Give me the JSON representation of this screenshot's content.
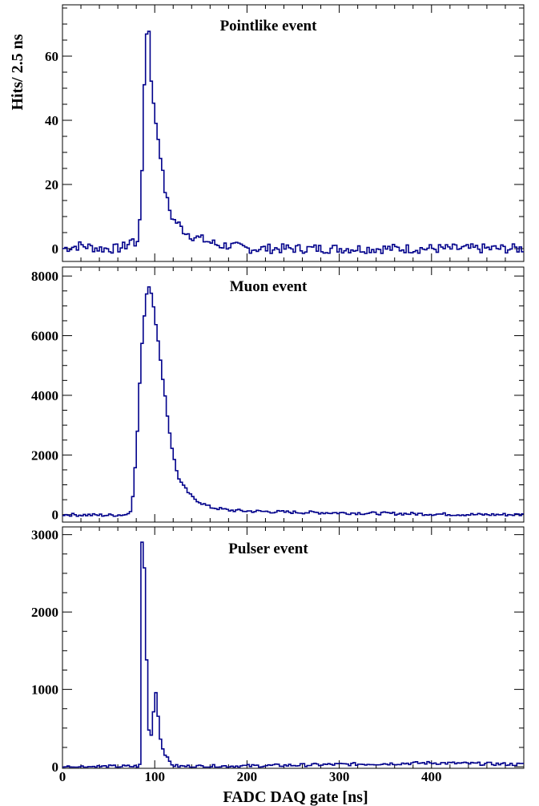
{
  "figure": {
    "ylabel": "Hits/ 2.5 ns",
    "xlabel": "FADC DAQ gate [ns]"
  },
  "colors": {
    "trace": "#00008b",
    "axis": "#000000"
  },
  "chart_data": [
    {
      "type": "line",
      "title": "Pointlike event",
      "xlim": [
        0,
        500
      ],
      "ylim": [
        -4,
        76
      ],
      "x_ticks": [
        0,
        100,
        200,
        300,
        400
      ],
      "x_tick_labels": [
        "",
        "",
        "",
        "",
        ""
      ],
      "y_ticks": [
        0,
        20,
        40,
        60
      ],
      "y_tick_labels": [
        "0",
        "20",
        "40",
        "60"
      ],
      "bin_width": 2.5,
      "x": [
        0,
        20,
        40,
        60,
        70,
        75,
        80,
        84,
        87,
        89,
        91,
        93,
        95,
        97,
        99,
        101,
        103,
        106,
        110,
        115,
        120,
        125,
        130,
        140,
        150,
        160,
        170,
        180,
        200,
        250,
        300,
        350,
        400,
        450,
        500
      ],
      "values": [
        0,
        1,
        0,
        0,
        1,
        3,
        1,
        8,
        30,
        55,
        66,
        72,
        62,
        48,
        44,
        40,
        36,
        30,
        20,
        13,
        9,
        8,
        6,
        4,
        3,
        2,
        1,
        1,
        0,
        0,
        0,
        0,
        0,
        0,
        0
      ],
      "noise": 1.5
    },
    {
      "type": "line",
      "title": "Muon event",
      "xlim": [
        0,
        500
      ],
      "ylim": [
        -250,
        8300
      ],
      "x_ticks": [
        0,
        100,
        200,
        300,
        400
      ],
      "x_tick_labels": [
        "",
        "",
        "",
        "",
        ""
      ],
      "y_ticks": [
        0,
        2000,
        4000,
        6000,
        8000
      ],
      "y_tick_labels": [
        "0",
        "2000",
        "4000",
        "6000",
        "8000"
      ],
      "bin_width": 2.5,
      "x": [
        0,
        50,
        70,
        75,
        80,
        85,
        90,
        93,
        95,
        98,
        100,
        103,
        106,
        110,
        115,
        120,
        125,
        130,
        140,
        150,
        160,
        170,
        180,
        200,
        250,
        300,
        350,
        400,
        450,
        500
      ],
      "values": [
        0,
        -20,
        0,
        200,
        2000,
        5200,
        7200,
        7700,
        7600,
        7200,
        6700,
        6000,
        5200,
        4300,
        3000,
        2000,
        1300,
        1000,
        600,
        400,
        250,
        200,
        150,
        120,
        80,
        60,
        40,
        20,
        0,
        0
      ],
      "noise": 50
    },
    {
      "type": "line",
      "title": "Pulser event",
      "xlim": [
        0,
        500
      ],
      "ylim": [
        -20,
        3100
      ],
      "x_ticks": [
        0,
        100,
        200,
        300,
        400
      ],
      "x_tick_labels": [
        "0",
        "100",
        "200",
        "300",
        "400"
      ],
      "y_ticks": [
        0,
        1000,
        2000,
        3000
      ],
      "y_tick_labels": [
        "0",
        "1000",
        "2000",
        "3000"
      ],
      "bin_width": 2.5,
      "x": [
        0,
        80,
        84,
        86,
        87.5,
        89,
        91,
        93,
        95,
        96,
        98,
        100,
        102,
        103,
        105,
        107,
        110,
        114,
        118,
        122,
        130,
        200,
        250,
        300,
        350,
        400,
        450,
        500
      ],
      "values": [
        0,
        5,
        20,
        2900,
        2900,
        2500,
        1500,
        600,
        250,
        400,
        600,
        900,
        1000,
        800,
        450,
        300,
        200,
        100,
        40,
        10,
        5,
        10,
        20,
        30,
        40,
        50,
        40,
        30
      ],
      "noise": 20
    }
  ]
}
